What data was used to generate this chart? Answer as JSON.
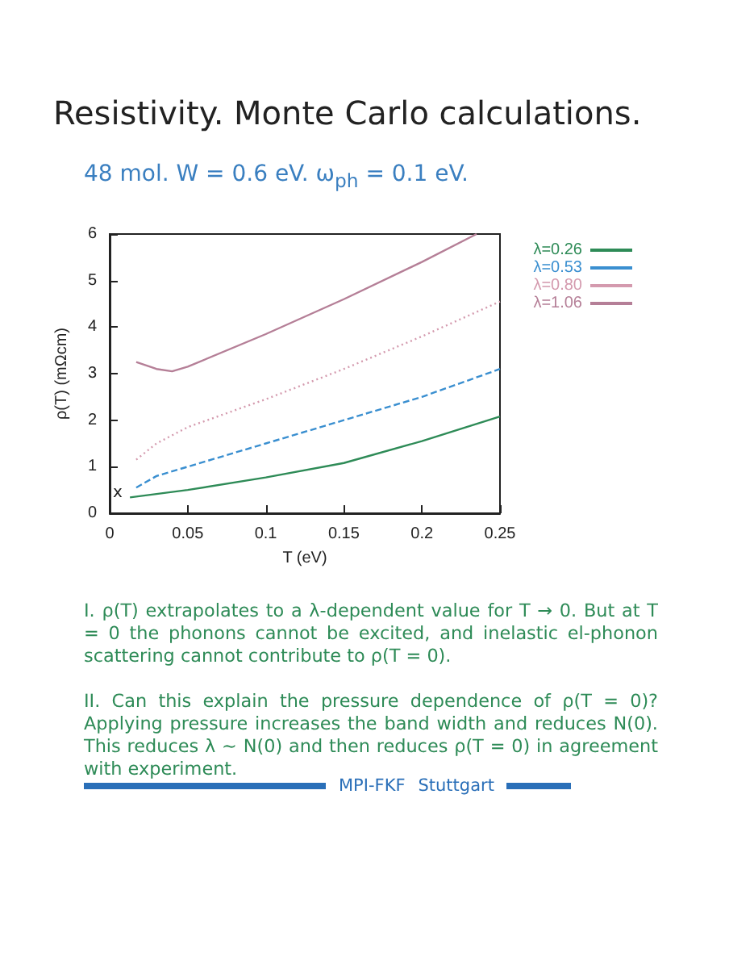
{
  "chart_data": {
    "type": "line",
    "title": "Resistivity. Monte Carlo calculations.",
    "subtitle": "48 mol. W = 0.6 eV. ω$_{ph}$ = 0.1 eV.",
    "xlabel": "T (eV)",
    "ylabel": "ρ(T) (mΩcm)",
    "xlim": [
      0,
      0.25
    ],
    "xticks": [
      0,
      0.05,
      0.1,
      0.15,
      0.2,
      0.25
    ],
    "ylim": [
      0,
      6
    ],
    "yticks": [
      0,
      1,
      2,
      3,
      4,
      5,
      6
    ],
    "grid": false,
    "legend": "top right",
    "marker": "none",
    "series": [
      {
        "name": "λ=0.26",
        "color": "#2e8b57",
        "line_style": "solid",
        "x": [
          0.013,
          0.05,
          0.1,
          0.15,
          0.2,
          0.25
        ],
        "values": [
          0.34,
          0.5,
          0.77,
          1.08,
          1.55,
          2.08
        ]
      },
      {
        "name": "λ=0.53",
        "color": "#3a8fd0",
        "line_style": "dashed",
        "x": [
          0.017,
          0.03,
          0.05,
          0.1,
          0.15,
          0.2,
          0.25
        ],
        "values": [
          0.55,
          0.8,
          1.0,
          1.5,
          2.0,
          2.5,
          3.1
        ]
      },
      {
        "name": "λ=0.80",
        "color": "#d49aae",
        "line_style": "dotted",
        "x": [
          0.017,
          0.03,
          0.05,
          0.1,
          0.15,
          0.2,
          0.25
        ],
        "values": [
          1.15,
          1.5,
          1.85,
          2.45,
          3.1,
          3.8,
          4.55
        ]
      },
      {
        "name": "λ=1.06",
        "color": "#b57f97",
        "line_style": "solid",
        "x": [
          0.017,
          0.03,
          0.04,
          0.05,
          0.1,
          0.15,
          0.2,
          0.235
        ],
        "values": [
          3.25,
          3.1,
          3.05,
          3.15,
          3.85,
          4.6,
          5.4,
          6.0
        ]
      }
    ],
    "annotations": [
      "x",
      "I. ρ(T) extrapolates to a λ-dependent value for T → 0. But at T = 0 the phonons cannot be excited, and inelastic el-phonon scattering cannot contribute to ρ(T = 0).",
      "II. Can this explain the pressure dependence of ρ(T = 0)? Applying pressure increases the band width and reduces N(0). This reduces λ ∼ N(0) and then reduces ρ(T = 0) in agreement with experiment.",
      "MPI-FKF",
      "Stuttgart"
    ]
  }
}
